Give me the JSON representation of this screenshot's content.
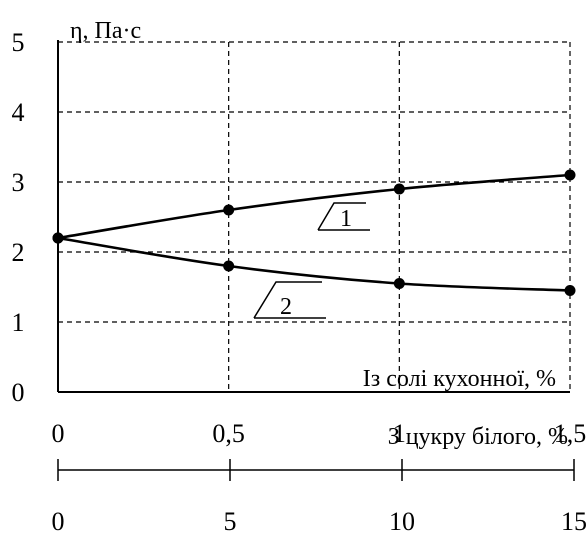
{
  "chart_data": {
    "type": "line",
    "ylabel": "η, Па·с",
    "ylim": [
      0,
      5
    ],
    "yticks": [
      "0",
      "1",
      "2",
      "3",
      "4",
      "5"
    ],
    "x": [
      0,
      0.5,
      1,
      1.5
    ],
    "xticks": [
      "0",
      "0,5",
      "1",
      "1,5"
    ],
    "xlabel": "Із солі кухонної, %",
    "x2ticks": [
      "0",
      "5",
      "10",
      "15"
    ],
    "x2label": "З цукру білого, %",
    "grid": true,
    "series": [
      {
        "name": "1",
        "values": [
          2.2,
          2.6,
          2.9,
          3.1
        ]
      },
      {
        "name": "2",
        "values": [
          2.2,
          1.8,
          1.55,
          1.45
        ]
      }
    ]
  }
}
